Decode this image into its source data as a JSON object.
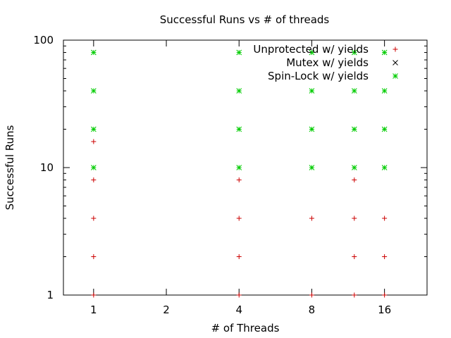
{
  "chart_data": {
    "type": "scatter",
    "title": "Successful Runs vs # of threads",
    "xlabel": "# of Threads",
    "ylabel": "Successful Runs",
    "x_scale": "log2",
    "y_scale": "log10",
    "xlim": [
      0.75,
      24
    ],
    "ylim": [
      1,
      100
    ],
    "x_ticks": [
      1,
      2,
      4,
      8,
      16
    ],
    "y_ticks": [
      1,
      10,
      100
    ],
    "grid": false,
    "legend_position": "top-right",
    "series": [
      {
        "name": "Unprotected w/ yields",
        "marker": "plus",
        "color": "#cc0000",
        "points": [
          {
            "x": 1,
            "y": 1
          },
          {
            "x": 1,
            "y": 2
          },
          {
            "x": 1,
            "y": 4
          },
          {
            "x": 1,
            "y": 8
          },
          {
            "x": 1,
            "y": 16
          },
          {
            "x": 4,
            "y": 1
          },
          {
            "x": 4,
            "y": 2
          },
          {
            "x": 4,
            "y": 4
          },
          {
            "x": 4,
            "y": 8
          },
          {
            "x": 8,
            "y": 1
          },
          {
            "x": 8,
            "y": 4
          },
          {
            "x": 12,
            "y": 1
          },
          {
            "x": 12,
            "y": 2
          },
          {
            "x": 12,
            "y": 4
          },
          {
            "x": 12,
            "y": 8
          },
          {
            "x": 16,
            "y": 1
          },
          {
            "x": 16,
            "y": 2
          },
          {
            "x": 16,
            "y": 4
          }
        ]
      },
      {
        "name": "Mutex w/ yields",
        "marker": "cross",
        "color": "#000000",
        "points": []
      },
      {
        "name": "Spin-Lock w/ yields",
        "marker": "star",
        "color": "#00cc00",
        "points": [
          {
            "x": 1,
            "y": 10
          },
          {
            "x": 1,
            "y": 20
          },
          {
            "x": 1,
            "y": 40
          },
          {
            "x": 1,
            "y": 80
          },
          {
            "x": 4,
            "y": 10
          },
          {
            "x": 4,
            "y": 20
          },
          {
            "x": 4,
            "y": 40
          },
          {
            "x": 4,
            "y": 80
          },
          {
            "x": 8,
            "y": 10
          },
          {
            "x": 8,
            "y": 20
          },
          {
            "x": 8,
            "y": 40
          },
          {
            "x": 8,
            "y": 80
          },
          {
            "x": 12,
            "y": 10
          },
          {
            "x": 12,
            "y": 20
          },
          {
            "x": 12,
            "y": 40
          },
          {
            "x": 12,
            "y": 80
          },
          {
            "x": 16,
            "y": 10
          },
          {
            "x": 16,
            "y": 20
          },
          {
            "x": 16,
            "y": 40
          },
          {
            "x": 16,
            "y": 80
          }
        ]
      }
    ]
  }
}
